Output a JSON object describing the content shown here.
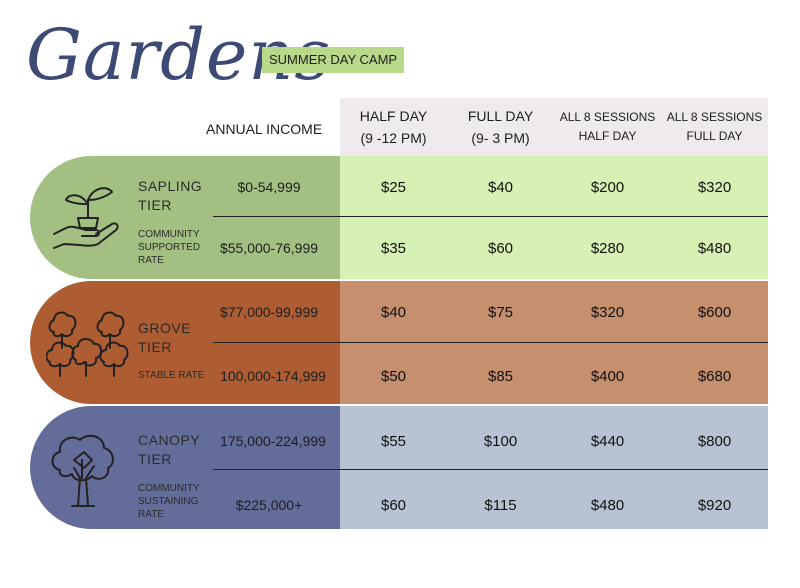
{
  "title": "Gardens",
  "badge": "SUMMER DAY CAMP",
  "income_header": "ANNUAL INCOME",
  "columns": [
    {
      "line1": "HALF DAY",
      "line2": "(9 -12 PM)"
    },
    {
      "line1": "FULL DAY",
      "line2": "(9- 3 PM)"
    },
    {
      "line1": "ALL 8 SESSIONS",
      "line2": "HALF DAY"
    },
    {
      "line1": "ALL 8 SESSIONS",
      "line2": "FULL DAY"
    }
  ],
  "tiers": [
    {
      "name_line1": "SAPLING",
      "name_line2": "TIER",
      "sub_label": [
        "COMMUNITY",
        "SUPPORTED",
        "RATE"
      ],
      "icon": "hand-with-sprout-icon",
      "left_color": "#a3c082",
      "right_color": "#d7f0b3",
      "rows": [
        {
          "income": "$0-54,999",
          "prices": [
            "$25",
            "$40",
            "$200",
            "$320"
          ]
        },
        {
          "income": "$55,000-76,999",
          "prices": [
            "$35",
            "$60",
            "$280",
            "$480"
          ]
        }
      ]
    },
    {
      "name_line1": "GROVE",
      "name_line2": "TIER",
      "sub_label": [
        "STABLE RATE"
      ],
      "icon": "grove-of-trees-icon",
      "left_color": "#ae5d33",
      "right_color": "#c68f6e",
      "rows": [
        {
          "income": "$77,000-99,999",
          "prices": [
            "$40",
            "$75",
            "$320",
            "$600"
          ]
        },
        {
          "income": "100,000-174,999",
          "prices": [
            "$50",
            "$85",
            "$400",
            "$680"
          ]
        }
      ]
    },
    {
      "name_line1": "CANOPY",
      "name_line2": "TIER",
      "sub_label": [
        "COMMUNITY",
        "SUSTAINING",
        "RATE"
      ],
      "icon": "canopy-tree-icon",
      "left_color": "#646d99",
      "right_color": "#b7c3d3",
      "rows": [
        {
          "income": "175,000-224,999",
          "prices": [
            "$55",
            "$100",
            "$440",
            "$800"
          ]
        },
        {
          "income": "$225,000+",
          "prices": [
            "$60",
            "$115",
            "$480",
            "$920"
          ]
        }
      ]
    }
  ]
}
